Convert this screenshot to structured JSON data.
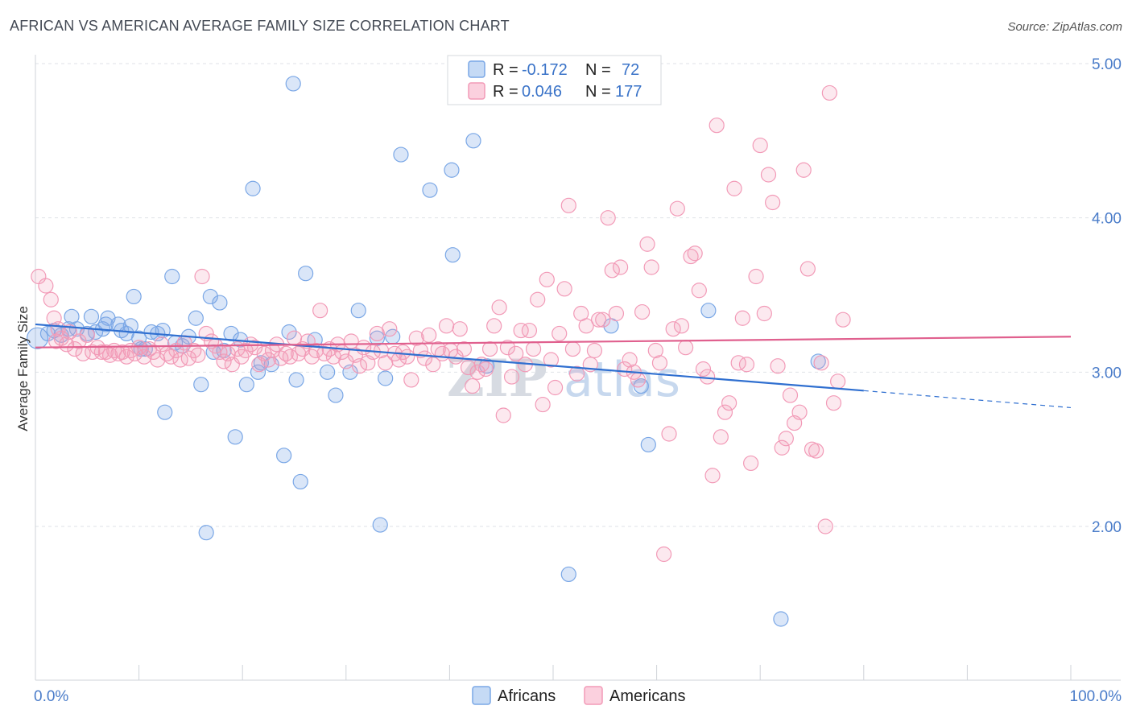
{
  "title": "AFRICAN VS AMERICAN AVERAGE FAMILY SIZE CORRELATION CHART",
  "source": "Source: ZipAtlas.com",
  "watermark": {
    "zip": "ZIP",
    "atlas": "atlas"
  },
  "legend_top": [
    {
      "r_label": "R =",
      "r_value": "-0.172",
      "n_label": "N =",
      "n_value": "72",
      "color": "#7aa7e6"
    },
    {
      "r_label": "R =",
      "r_value": "0.046",
      "n_label": "N =",
      "n_value": "177",
      "color": "#f29ab7"
    }
  ],
  "chart_data": {
    "type": "scatter",
    "title": "AFRICAN VS AMERICAN AVERAGE FAMILY SIZE CORRELATION CHART",
    "xlabel": "",
    "ylabel": "Average Family Size",
    "xlim": [
      0,
      100
    ],
    "ylim": [
      1.0,
      5.2
    ],
    "x_tick_labels": [
      "0.0%",
      "100.0%"
    ],
    "y_ticks": [
      2.0,
      3.0,
      4.0,
      5.0
    ],
    "y_tick_labels": [
      "2.00",
      "3.00",
      "4.00",
      "5.00"
    ],
    "grid": true,
    "legend_position": "top-center",
    "series": [
      {
        "name": "Africans",
        "color": "#7aa7e6",
        "line_color": "#2f6fd0",
        "trend": {
          "x0": 0,
          "y0": 3.31,
          "x1": 80,
          "y1": 2.88,
          "dash_x1": 100,
          "dash_y1": 2.77
        },
        "points": [
          [
            0.2,
            3.22
          ],
          [
            1.2,
            3.25
          ],
          [
            1.8,
            3.27
          ],
          [
            2.5,
            3.24
          ],
          [
            3.2,
            3.28
          ],
          [
            3.5,
            3.36
          ],
          [
            4.0,
            3.28
          ],
          [
            5.0,
            3.25
          ],
          [
            5.4,
            3.36
          ],
          [
            5.8,
            3.26
          ],
          [
            6.5,
            3.28
          ],
          [
            6.8,
            3.31
          ],
          [
            7.0,
            3.35
          ],
          [
            8.0,
            3.31
          ],
          [
            8.3,
            3.27
          ],
          [
            8.8,
            3.25
          ],
          [
            9.2,
            3.3
          ],
          [
            9.5,
            3.49
          ],
          [
            10.0,
            3.22
          ],
          [
            10.6,
            3.15
          ],
          [
            11.2,
            3.26
          ],
          [
            11.8,
            3.25
          ],
          [
            12.3,
            3.27
          ],
          [
            12.5,
            2.74
          ],
          [
            13.2,
            3.62
          ],
          [
            13.5,
            3.19
          ],
          [
            14.2,
            3.17
          ],
          [
            14.8,
            3.23
          ],
          [
            15.5,
            3.35
          ],
          [
            16.0,
            2.92
          ],
          [
            16.5,
            1.96
          ],
          [
            16.9,
            3.49
          ],
          [
            17.2,
            3.13
          ],
          [
            17.8,
            3.45
          ],
          [
            18.2,
            3.14
          ],
          [
            18.9,
            3.25
          ],
          [
            19.3,
            2.58
          ],
          [
            19.8,
            3.21
          ],
          [
            20.4,
            2.92
          ],
          [
            21.0,
            4.19
          ],
          [
            21.5,
            3.0
          ],
          [
            21.8,
            3.06
          ],
          [
            22.8,
            3.05
          ],
          [
            24.0,
            2.46
          ],
          [
            24.5,
            3.26
          ],
          [
            24.9,
            4.87
          ],
          [
            25.2,
            2.95
          ],
          [
            25.6,
            2.29
          ],
          [
            26.1,
            3.64
          ],
          [
            27.0,
            3.21
          ],
          [
            28.2,
            3.0
          ],
          [
            29.0,
            2.85
          ],
          [
            30.4,
            3.0
          ],
          [
            31.2,
            3.4
          ],
          [
            33.3,
            2.01
          ],
          [
            33.8,
            2.96
          ],
          [
            33.0,
            3.22
          ],
          [
            34.5,
            3.23
          ],
          [
            35.3,
            4.41
          ],
          [
            38.1,
            4.18
          ],
          [
            40.2,
            4.31
          ],
          [
            40.3,
            3.76
          ],
          [
            42.3,
            4.5
          ],
          [
            43.6,
            3.04
          ],
          [
            51.5,
            1.69
          ],
          [
            55.6,
            3.3
          ],
          [
            58.5,
            2.91
          ],
          [
            59.2,
            2.53
          ],
          [
            65.0,
            3.4
          ],
          [
            72.0,
            1.4
          ],
          [
            75.6,
            3.07
          ],
          [
            10.2,
            3.15
          ]
        ]
      },
      {
        "name": "Americans",
        "color": "#f29ab7",
        "line_color": "#e0608e",
        "trend": {
          "x0": 0,
          "y0": 3.16,
          "x1": 100,
          "y1": 3.23
        },
        "points": [
          [
            0.3,
            3.62
          ],
          [
            1.0,
            3.56
          ],
          [
            1.5,
            3.47
          ],
          [
            1.8,
            3.35
          ],
          [
            2.2,
            3.28
          ],
          [
            2.5,
            3.22
          ],
          [
            3.0,
            3.18
          ],
          [
            3.3,
            3.26
          ],
          [
            3.8,
            3.15
          ],
          [
            4.2,
            3.2
          ],
          [
            4.6,
            3.12
          ],
          [
            5.0,
            3.24
          ],
          [
            5.5,
            3.13
          ],
          [
            6.0,
            3.16
          ],
          [
            6.4,
            3.13
          ],
          [
            6.8,
            3.13
          ],
          [
            7.2,
            3.11
          ],
          [
            7.6,
            3.14
          ],
          [
            8.0,
            3.12
          ],
          [
            8.4,
            3.13
          ],
          [
            8.8,
            3.1
          ],
          [
            9.2,
            3.14
          ],
          [
            9.6,
            3.12
          ],
          [
            10.0,
            3.16
          ],
          [
            10.5,
            3.1
          ],
          [
            11.0,
            3.15
          ],
          [
            11.4,
            3.13
          ],
          [
            11.8,
            3.08
          ],
          [
            12.2,
            3.18
          ],
          [
            12.7,
            3.12
          ],
          [
            13.1,
            3.1
          ],
          [
            13.6,
            3.14
          ],
          [
            14.0,
            3.08
          ],
          [
            14.4,
            3.19
          ],
          [
            14.8,
            3.09
          ],
          [
            15.3,
            3.14
          ],
          [
            15.7,
            3.11
          ],
          [
            16.1,
            3.62
          ],
          [
            16.5,
            3.25
          ],
          [
            17.0,
            3.2
          ],
          [
            17.4,
            3.17
          ],
          [
            17.8,
            3.13
          ],
          [
            18.2,
            3.07
          ],
          [
            18.6,
            3.12
          ],
          [
            19.0,
            3.05
          ],
          [
            19.5,
            3.15
          ],
          [
            19.9,
            3.1
          ],
          [
            20.3,
            3.14
          ],
          [
            20.8,
            3.18
          ],
          [
            21.2,
            3.16
          ],
          [
            21.6,
            3.05
          ],
          [
            22.1,
            3.12
          ],
          [
            22.5,
            3.08
          ],
          [
            22.9,
            3.14
          ],
          [
            23.3,
            3.18
          ],
          [
            23.7,
            3.09
          ],
          [
            24.2,
            3.12
          ],
          [
            24.6,
            3.1
          ],
          [
            25.0,
            3.22
          ],
          [
            25.4,
            3.12
          ],
          [
            25.8,
            3.15
          ],
          [
            26.3,
            3.2
          ],
          [
            26.7,
            3.1
          ],
          [
            27.1,
            3.14
          ],
          [
            27.5,
            3.4
          ],
          [
            27.9,
            3.12
          ],
          [
            28.4,
            3.15
          ],
          [
            28.8,
            3.1
          ],
          [
            29.2,
            3.18
          ],
          [
            29.6,
            3.13
          ],
          [
            30.0,
            3.07
          ],
          [
            30.5,
            3.2
          ],
          [
            30.9,
            3.11
          ],
          [
            31.3,
            3.04
          ],
          [
            31.7,
            3.16
          ],
          [
            32.1,
            3.06
          ],
          [
            32.6,
            3.13
          ],
          [
            33.0,
            3.25
          ],
          [
            33.4,
            3.14
          ],
          [
            33.8,
            3.06
          ],
          [
            34.2,
            3.28
          ],
          [
            34.7,
            3.12
          ],
          [
            35.1,
            3.08
          ],
          [
            35.5,
            3.13
          ],
          [
            35.9,
            3.1
          ],
          [
            36.3,
            2.95
          ],
          [
            36.8,
            3.22
          ],
          [
            37.2,
            3.14
          ],
          [
            37.6,
            3.09
          ],
          [
            38.0,
            3.24
          ],
          [
            38.4,
            3.05
          ],
          [
            38.9,
            3.15
          ],
          [
            39.3,
            3.12
          ],
          [
            39.7,
            3.3
          ],
          [
            40.1,
            3.14
          ],
          [
            40.6,
            3.1
          ],
          [
            41.0,
            3.28
          ],
          [
            41.4,
            3.15
          ],
          [
            41.8,
            3.03
          ],
          [
            42.2,
            2.91
          ],
          [
            42.7,
            3.0
          ],
          [
            43.1,
            3.05
          ],
          [
            43.5,
            3.02
          ],
          [
            43.9,
            3.15
          ],
          [
            44.3,
            3.3
          ],
          [
            44.8,
            3.42
          ],
          [
            45.2,
            2.72
          ],
          [
            45.6,
            3.16
          ],
          [
            46.0,
            2.97
          ],
          [
            46.4,
            3.12
          ],
          [
            46.9,
            3.27
          ],
          [
            47.3,
            3.05
          ],
          [
            47.7,
            3.27
          ],
          [
            48.1,
            3.15
          ],
          [
            48.5,
            3.47
          ],
          [
            49.0,
            2.79
          ],
          [
            49.4,
            3.6
          ],
          [
            49.8,
            3.08
          ],
          [
            50.2,
            2.9
          ],
          [
            50.6,
            3.25
          ],
          [
            51.1,
            3.54
          ],
          [
            51.5,
            4.08
          ],
          [
            51.9,
            3.15
          ],
          [
            52.3,
            2.99
          ],
          [
            52.7,
            3.38
          ],
          [
            53.2,
            3.3
          ],
          [
            53.6,
            3.05
          ],
          [
            54.0,
            3.14
          ],
          [
            54.4,
            3.34
          ],
          [
            54.8,
            3.34
          ],
          [
            55.3,
            4.0
          ],
          [
            55.7,
            3.66
          ],
          [
            56.1,
            3.38
          ],
          [
            56.5,
            3.68
          ],
          [
            56.9,
            3.02
          ],
          [
            57.4,
            3.08
          ],
          [
            57.8,
            3.0
          ],
          [
            58.2,
            2.95
          ],
          [
            58.6,
            3.39
          ],
          [
            59.1,
            3.83
          ],
          [
            59.5,
            3.68
          ],
          [
            59.9,
            3.14
          ],
          [
            60.3,
            3.06
          ],
          [
            60.7,
            1.82
          ],
          [
            61.2,
            2.6
          ],
          [
            61.6,
            3.28
          ],
          [
            62.0,
            4.06
          ],
          [
            62.4,
            3.3
          ],
          [
            62.8,
            3.16
          ],
          [
            63.3,
            3.75
          ],
          [
            63.7,
            3.77
          ],
          [
            64.1,
            3.53
          ],
          [
            64.5,
            3.02
          ],
          [
            64.9,
            2.97
          ],
          [
            65.4,
            2.33
          ],
          [
            65.8,
            4.6
          ],
          [
            66.2,
            2.58
          ],
          [
            66.6,
            2.74
          ],
          [
            67.0,
            2.8
          ],
          [
            67.5,
            4.19
          ],
          [
            67.9,
            3.06
          ],
          [
            68.3,
            3.35
          ],
          [
            68.7,
            3.05
          ],
          [
            69.1,
            2.41
          ],
          [
            69.6,
            3.62
          ],
          [
            70.0,
            4.47
          ],
          [
            70.4,
            3.38
          ],
          [
            70.8,
            4.28
          ],
          [
            71.2,
            4.1
          ],
          [
            71.7,
            3.04
          ],
          [
            72.1,
            2.51
          ],
          [
            72.5,
            2.57
          ],
          [
            72.9,
            2.85
          ],
          [
            73.3,
            2.67
          ],
          [
            73.8,
            2.74
          ],
          [
            74.2,
            4.31
          ],
          [
            74.6,
            3.67
          ],
          [
            75.0,
            2.5
          ],
          [
            75.4,
            2.49
          ],
          [
            75.9,
            3.06
          ],
          [
            76.3,
            2.0
          ],
          [
            76.7,
            4.81
          ],
          [
            77.1,
            2.8
          ],
          [
            77.5,
            2.94
          ],
          [
            78.0,
            3.34
          ],
          [
            2.0,
            3.2
          ]
        ]
      }
    ]
  },
  "bottom_legend": [
    {
      "label": "Africans",
      "color": "#7aa7e6"
    },
    {
      "label": "Americans",
      "color": "#f29ab7"
    }
  ]
}
